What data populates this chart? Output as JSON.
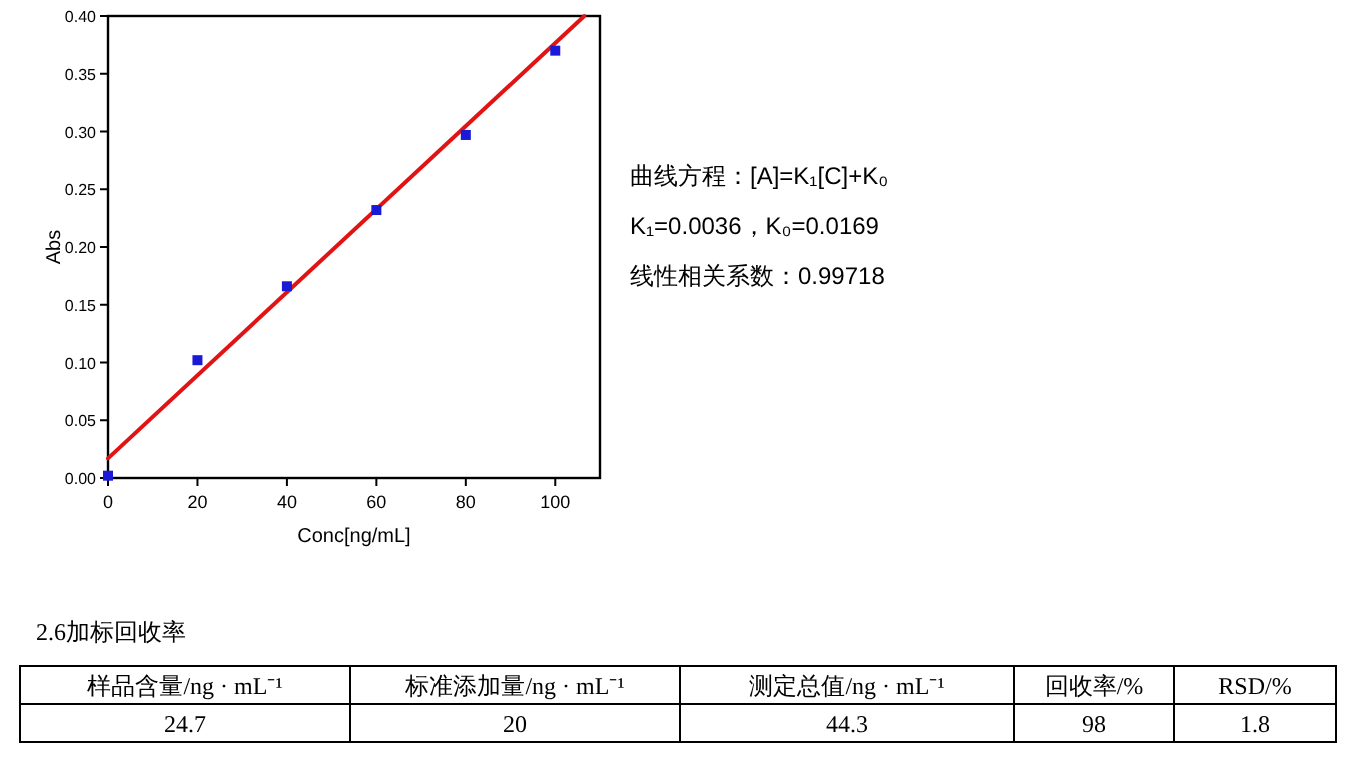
{
  "chart_data": [
    {
      "type": "scatter",
      "xlabel": "Conc[ng/mL]",
      "ylabel": "Abs",
      "xlim": [
        0,
        110
      ],
      "ylim": [
        0,
        0.4
      ],
      "xticks": [
        0,
        20,
        40,
        60,
        80,
        100
      ],
      "yticks": [
        {
          "value": 0,
          "label": "0.00"
        },
        {
          "value": 0.05,
          "label": "0.05"
        },
        {
          "value": 0.1,
          "label": "0.10"
        },
        {
          "value": 0.15,
          "label": "0.15"
        },
        {
          "value": 0.2,
          "label": "0.20"
        },
        {
          "value": 0.25,
          "label": "0.25"
        },
        {
          "value": 0.3,
          "label": "0.30"
        },
        {
          "value": 0.35,
          "label": "0.35"
        },
        {
          "value": 0.4,
          "label": "0.40"
        }
      ],
      "grid": false,
      "series": [
        {
          "marker": "square",
          "color": "#1a1ad6",
          "x": [
            0,
            20,
            40,
            60,
            80,
            100
          ],
          "values": [
            0.002,
            0.102,
            0.166,
            0.232,
            0.297,
            0.37
          ]
        },
        {
          "type": "line",
          "marker": "none",
          "color": "#e01414",
          "x": [
            0,
            106.5
          ],
          "values": [
            0.017,
            0.4
          ]
        }
      ],
      "annotations": [
        "曲线方程：[A]=K₁[C]+K₀",
        "K₁=0.0036，K₀=0.0169",
        "线性相关系数：0.99718"
      ]
    },
    {
      "type": "other",
      "title": "2.6加标回收率",
      "annotations": [
        "样品含量/ng · mL⁻¹",
        "标准添加量/ng · mL⁻¹",
        "测定总值/ng · mL⁻¹",
        "回收率/%",
        "RSD/%",
        "24.7",
        "20",
        "44.3",
        "98",
        "1.8"
      ]
    }
  ]
}
